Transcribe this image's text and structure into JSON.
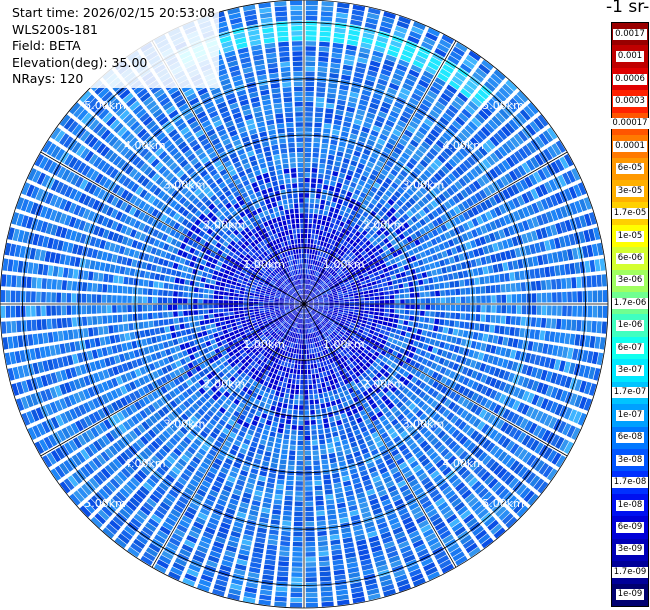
{
  "header": {
    "start_time": "Start time: 2026/02/15 20:53:08",
    "instrument": "WLS200s-181",
    "field": "Field: BETA",
    "elevation": "Elevation(deg): 35.00",
    "nrays": "NRays: 120"
  },
  "colorbar": {
    "unit_title": "-1 sr-",
    "labels": [
      "0.0017",
      "0.001",
      "0.0006",
      "0.0003",
      "0.00017",
      "0.0001",
      "6e-05",
      "3e-05",
      "1.7e-05",
      "1e-05",
      "6e-06",
      "3e-06",
      "1.7e-06",
      "1e-06",
      "6e-07",
      "3e-07",
      "1.7e-07",
      "1e-07",
      "6e-08",
      "3e-08",
      "1.7e-08",
      "1e-08",
      "6e-09",
      "3e-09",
      "1.7e-09",
      "1e-09"
    ],
    "colors": [
      "#990000",
      "#c00000",
      "#e00000",
      "#ff2200",
      "#ff5500",
      "#ff7a00",
      "#ff9900",
      "#ffb000",
      "#ffd000",
      "#ffff00",
      "#d4ff30",
      "#a0ff60",
      "#70ff90",
      "#40ffc0",
      "#10ffee",
      "#00e8ff",
      "#00c4ff",
      "#00a0ff",
      "#0078ff",
      "#0055ff",
      "#0030ff",
      "#0010f0",
      "#0000d8",
      "#0000b8",
      "#000098",
      "#000070"
    ]
  },
  "chart_data": {
    "type": "heatmap",
    "projection": "polar-ppi",
    "field": "BETA",
    "elevation_deg": 35.0,
    "n_rays": 120,
    "range_rings_km": [
      1,
      2,
      3,
      4,
      5
    ],
    "range_ring_labels": [
      "1.00km",
      "2.00km",
      "3.00km",
      "4.00km",
      "5.00km"
    ],
    "max_range_km": 5.4,
    "spoke_interval_deg": 30,
    "dominant_value_range": [
      3e-08,
      1e-07
    ],
    "feature": "enhanced backscatter band (~1e-07 to 1.7e-07) near 4.7-5.0 km range, azimuth ~330-40 deg"
  }
}
